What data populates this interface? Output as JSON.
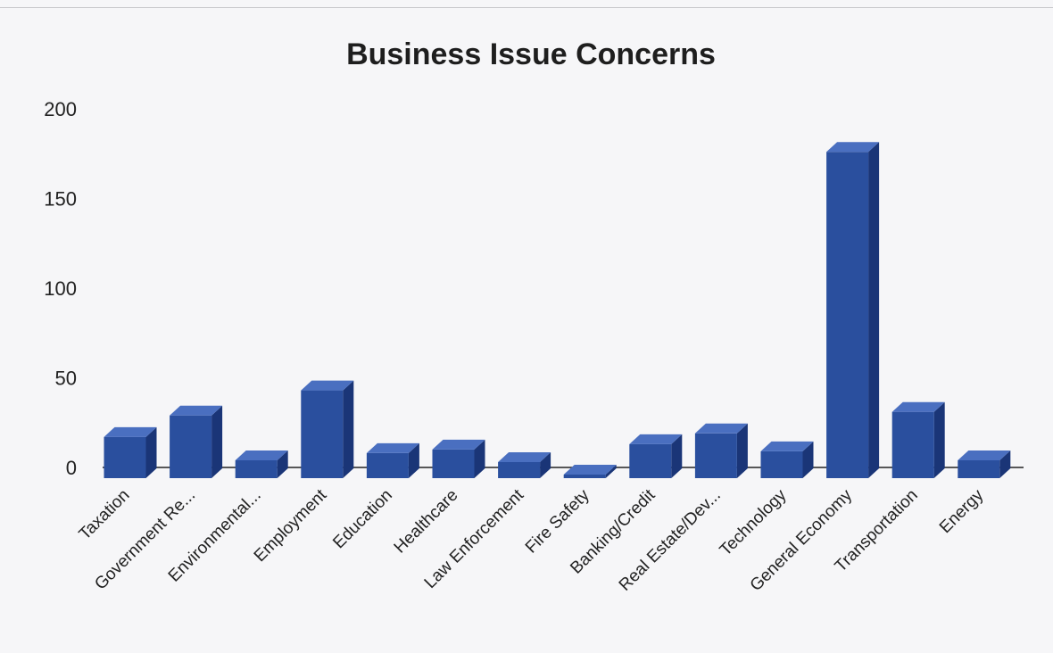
{
  "chart_data": {
    "type": "bar",
    "title": "Business Issue Concerns",
    "xlabel": "",
    "ylabel": "",
    "ylim": [
      0,
      200
    ],
    "yticks": [
      0,
      50,
      100,
      150,
      200
    ],
    "categories": [
      "Taxation",
      "Government Re...",
      "Environmental...",
      "Employment",
      "Education",
      "Healthcare",
      "Law Enforcement",
      "Fire Safety",
      "Banking/Credit",
      "Real Estate/Dev...",
      "Technology",
      "General Economy",
      "Transportation",
      "Energy"
    ],
    "values": [
      17,
      29,
      4,
      43,
      8,
      10,
      3,
      0,
      13,
      19,
      9,
      176,
      31,
      4
    ],
    "colors": {
      "bar_front": "#2a4f9e",
      "bar_top": "#4a6fc0",
      "bar_side": "#1a3577"
    },
    "grid": false
  }
}
